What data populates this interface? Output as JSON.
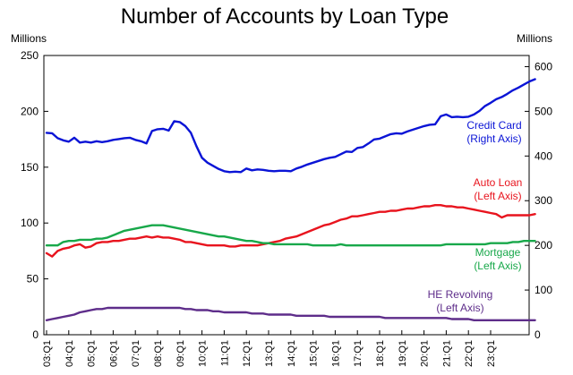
{
  "chart_data": {
    "type": "line",
    "title": "Number of Accounts by Loan Type",
    "left_axis": {
      "label": "Millions",
      "ylim": [
        0,
        250
      ],
      "ticks": [
        "0",
        "50",
        "100",
        "150",
        "200",
        "250"
      ]
    },
    "right_axis": {
      "label": "Millions",
      "ylim": [
        0,
        625
      ],
      "ticks": [
        "0",
        "100",
        "200",
        "300",
        "400",
        "500",
        "600"
      ]
    },
    "x_ticks": [
      "03:Q1",
      "04:Q1",
      "05:Q1",
      "06:Q1",
      "07:Q1",
      "08:Q1",
      "09:Q1",
      "10:Q1",
      "11:Q1",
      "12:Q1",
      "13:Q1",
      "14:Q1",
      "15:Q1",
      "16:Q1",
      "17:Q1",
      "18:Q1",
      "19:Q1",
      "20:Q1",
      "21:Q1",
      "22:Q1",
      "23:Q1"
    ],
    "x_start": "2003Q1",
    "quarters_per_tick": 4,
    "grid": false,
    "series": [
      {
        "name": "Credit Card",
        "label_lines": [
          "Credit Card",
          "(Right Axis)"
        ],
        "axis": "right",
        "color": "#0a14d6",
        "values": [
          452,
          451,
          440,
          435,
          432,
          441,
          430,
          432,
          430,
          433,
          431,
          433,
          436,
          438,
          440,
          441,
          436,
          433,
          428,
          456,
          460,
          461,
          457,
          478,
          476,
          467,
          452,
          422,
          396,
          385,
          378,
          371,
          366,
          364,
          365,
          364,
          372,
          368,
          370,
          369,
          367,
          366,
          367,
          367,
          366,
          372,
          376,
          381,
          385,
          389,
          393,
          396,
          398,
          404,
          410,
          409,
          418,
          420,
          428,
          437,
          439,
          444,
          449,
          451,
          450,
          455,
          459,
          463,
          467,
          470,
          471,
          489,
          493,
          487,
          488,
          487,
          488,
          493,
          501,
          512,
          519,
          527,
          532,
          539,
          547,
          553,
          560,
          567,
          572
        ]
      },
      {
        "name": "Auto Loan",
        "label_lines": [
          "Auto Loan",
          "(Left Axis)"
        ],
        "axis": "left",
        "color": "#e8141e",
        "values": [
          73,
          70,
          75,
          77,
          78,
          80,
          81,
          78,
          79,
          82,
          83,
          83,
          84,
          84,
          85,
          86,
          86,
          87,
          88,
          87,
          88,
          87,
          87,
          86,
          85,
          83,
          83,
          82,
          81,
          80,
          80,
          80,
          80,
          79,
          79,
          80,
          80,
          80,
          80,
          81,
          82,
          83,
          84,
          86,
          87,
          88,
          90,
          92,
          94,
          96,
          98,
          99,
          101,
          103,
          104,
          106,
          106,
          107,
          108,
          109,
          110,
          110,
          111,
          111,
          112,
          113,
          113,
          114,
          115,
          115,
          116,
          116,
          115,
          115,
          114,
          114,
          113,
          112,
          111,
          110,
          109,
          108,
          105,
          107,
          107,
          107,
          107,
          107,
          108
        ]
      },
      {
        "name": "Mortgage",
        "label_lines": [
          "Mortgage",
          "(Left Axis)"
        ],
        "axis": "left",
        "color": "#18a84a",
        "values": [
          80,
          80,
          80,
          83,
          84,
          84,
          85,
          85,
          85,
          86,
          86,
          87,
          89,
          91,
          93,
          94,
          95,
          96,
          97,
          98,
          98,
          98,
          97,
          96,
          95,
          94,
          93,
          92,
          91,
          90,
          89,
          88,
          88,
          87,
          86,
          85,
          84,
          84,
          83,
          82,
          82,
          81,
          81,
          81,
          81,
          81,
          81,
          81,
          80,
          80,
          80,
          80,
          80,
          81,
          80,
          80,
          80,
          80,
          80,
          80,
          80,
          80,
          80,
          80,
          80,
          80,
          80,
          80,
          80,
          80,
          80,
          80,
          81,
          81,
          81,
          81,
          81,
          81,
          81,
          81,
          82,
          82,
          82,
          82,
          83,
          83,
          84,
          84,
          84
        ]
      },
      {
        "name": "HE Revolving",
        "label_lines": [
          "HE Revolving",
          "(Left Axis)"
        ],
        "axis": "left",
        "color": "#5e2d8a",
        "values": [
          13,
          14,
          15,
          16,
          17,
          18,
          20,
          21,
          22,
          23,
          23,
          24,
          24,
          24,
          24,
          24,
          24,
          24,
          24,
          24,
          24,
          24,
          24,
          24,
          24,
          23,
          23,
          22,
          22,
          22,
          21,
          21,
          20,
          20,
          20,
          20,
          20,
          19,
          19,
          19,
          18,
          18,
          18,
          18,
          18,
          17,
          17,
          17,
          17,
          17,
          17,
          16,
          16,
          16,
          16,
          16,
          16,
          16,
          16,
          16,
          16,
          15,
          15,
          15,
          15,
          15,
          15,
          15,
          15,
          15,
          15,
          15,
          15,
          14,
          14,
          14,
          14,
          13,
          13,
          13,
          13,
          13,
          13,
          13,
          13,
          13,
          13,
          13,
          13
        ]
      }
    ]
  }
}
